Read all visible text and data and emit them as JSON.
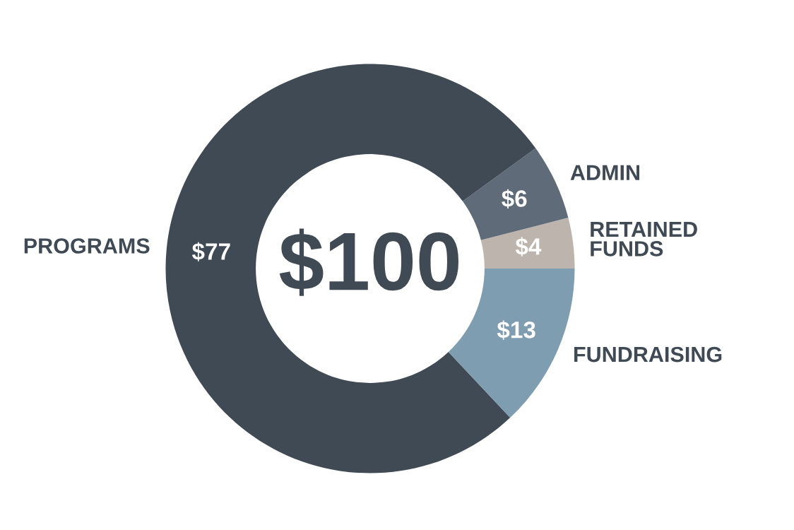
{
  "chart_data": {
    "type": "donut",
    "categories": [
      "RETAINED\nFUNDS",
      "ADMIN",
      "PROGRAMS",
      "FUNDRAISING"
    ],
    "values": [
      4,
      6,
      77,
      13
    ],
    "value_labels": [
      "$4",
      "$6",
      "$77",
      "$13"
    ],
    "colors": [
      "#bdb5ad",
      "#5f6b78",
      "#3f4a55",
      "#7f9db0"
    ],
    "annotations": [
      "$100"
    ],
    "legend": false
  }
}
